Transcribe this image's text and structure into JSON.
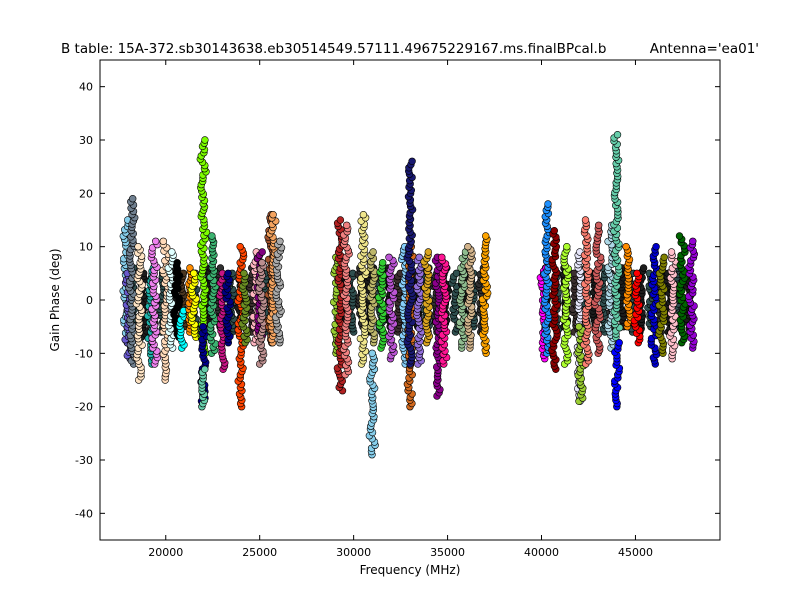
{
  "chart_data": {
    "type": "scatter",
    "title": "B table: 15A-372.sb30143638.eb30514549.57111.49675229167.ms.finalBPcal.b",
    "title_right": "Antenna='ea01'",
    "xlabel": "Frequency (MHz)",
    "ylabel": "Gain Phase (deg)",
    "xlim": [
      16500,
      49500
    ],
    "ylim": [
      -45,
      45
    ],
    "xticks": [
      20000,
      25000,
      30000,
      35000,
      40000,
      45000
    ],
    "yticks": [
      -40,
      -30,
      -20,
      -10,
      0,
      10,
      20,
      30,
      40
    ],
    "series_format": "[center_frequency_MHz, min_phase_deg, max_phase_deg, color]",
    "background_series": [
      [
        18300,
        -6,
        6,
        "#2f4f4f"
      ],
      [
        18800,
        -7,
        5,
        "#1c1c1c"
      ],
      [
        19300,
        -5,
        6,
        "#3b2f2f"
      ],
      [
        19800,
        -6,
        5,
        "#2f4f4f"
      ],
      [
        20400,
        -6,
        6,
        "#1c1c1c"
      ],
      [
        20900,
        -5,
        5,
        "#4b3621"
      ],
      [
        21600,
        -6,
        5,
        "#2f4f4f"
      ],
      [
        22300,
        -6,
        6,
        "#1c1c1c"
      ],
      [
        22800,
        -5,
        6,
        "#303030"
      ],
      [
        23500,
        -6,
        5,
        "#2f4f4f"
      ],
      [
        24000,
        -5,
        5,
        "#1c1c1c"
      ],
      [
        24600,
        -6,
        6,
        "#3b2f2f"
      ],
      [
        25300,
        -6,
        5,
        "#2f4f4f"
      ],
      [
        29400,
        -6,
        6,
        "#1c1c1c"
      ],
      [
        29900,
        -6,
        5,
        "#2f4f4f"
      ],
      [
        30400,
        -5,
        6,
        "#303030"
      ],
      [
        30900,
        -6,
        6,
        "#1c1c1c"
      ],
      [
        31400,
        -6,
        5,
        "#2f4f4f"
      ],
      [
        31900,
        -5,
        6,
        "#1c1c1c"
      ],
      [
        32400,
        -6,
        5,
        "#3b2f2f"
      ],
      [
        32900,
        -6,
        6,
        "#2f4f4f"
      ],
      [
        33400,
        -5,
        5,
        "#1c1c1c"
      ],
      [
        33900,
        -6,
        6,
        "#2f4f4f"
      ],
      [
        34400,
        -6,
        5,
        "#303030"
      ],
      [
        34900,
        -5,
        6,
        "#1c1c1c"
      ],
      [
        35400,
        -6,
        5,
        "#2f4f4f"
      ],
      [
        35900,
        -6,
        6,
        "#1c1c1c"
      ],
      [
        36400,
        -5,
        5,
        "#2f4f4f"
      ],
      [
        36800,
        -6,
        6,
        "#303030"
      ],
      [
        40200,
        -6,
        6,
        "#1c1c1c"
      ],
      [
        40800,
        -6,
        5,
        "#2f4f4f"
      ],
      [
        41300,
        -5,
        6,
        "#1c1c1c"
      ],
      [
        41800,
        -6,
        5,
        "#3b2f2f"
      ],
      [
        42300,
        -6,
        6,
        "#2f4f4f"
      ],
      [
        42800,
        -5,
        5,
        "#1c1c1c"
      ],
      [
        43300,
        -6,
        6,
        "#2f4f4f"
      ],
      [
        43800,
        -6,
        5,
        "#303030"
      ],
      [
        44300,
        -5,
        6,
        "#1c1c1c"
      ],
      [
        44800,
        -6,
        5,
        "#2f4f4f"
      ],
      [
        45300,
        -6,
        6,
        "#1c1c1c"
      ],
      [
        45800,
        -5,
        5,
        "#2f4f4f"
      ],
      [
        46300,
        -6,
        6,
        "#303030"
      ],
      [
        46800,
        -6,
        5,
        "#1c1c1c"
      ],
      [
        47300,
        -5,
        6,
        "#2f4f4f"
      ],
      [
        47800,
        -6,
        5,
        "#1c1c1c"
      ]
    ],
    "series": [
      [
        17900,
        -8,
        15,
        "#87ceeb"
      ],
      [
        18000,
        -11,
        5,
        "#6a5acd"
      ],
      [
        18200,
        -12,
        19,
        "#708090"
      ],
      [
        18600,
        -15,
        10,
        "#ffe4c4"
      ],
      [
        19200,
        -12,
        6,
        "#20b2aa"
      ],
      [
        19400,
        -12,
        11,
        "#ee82ee"
      ],
      [
        20000,
        -15,
        11,
        "#ffdab9"
      ],
      [
        20300,
        -9,
        9,
        "#e0ffff"
      ],
      [
        20600,
        -7,
        7,
        "#000000"
      ],
      [
        20850,
        -9,
        -2,
        "#00ffff"
      ],
      [
        21300,
        -6,
        6,
        "#ff8c00"
      ],
      [
        21500,
        -7,
        5,
        "#ffff00"
      ],
      [
        22000,
        -10,
        30,
        "#7cfc00"
      ],
      [
        22000,
        -19,
        -5,
        "#00008b"
      ],
      [
        22000,
        -20,
        -13,
        "#66cdaa"
      ],
      [
        22500,
        -10,
        12,
        "#3cb371"
      ],
      [
        23000,
        -13,
        5,
        "#c71585"
      ],
      [
        23300,
        -8,
        5,
        "#000080"
      ],
      [
        24000,
        -20,
        10,
        "#ff4500"
      ],
      [
        24200,
        -8,
        5,
        "#6b8e23"
      ],
      [
        24800,
        -8,
        9,
        "#ffb6c1"
      ],
      [
        25000,
        -8,
        9,
        "#800080"
      ],
      [
        25100,
        -12,
        7,
        "#bc8f8f"
      ],
      [
        25600,
        -8,
        16,
        "#a0522d"
      ],
      [
        25700,
        -8,
        16,
        "#f4a460"
      ],
      [
        26000,
        -8,
        11,
        "#a9a9a9"
      ],
      [
        29100,
        -10,
        8,
        "#9acd32"
      ],
      [
        29300,
        -17,
        15,
        "#b22222"
      ],
      [
        29600,
        -14,
        14,
        "#f08080"
      ],
      [
        30500,
        -12,
        16,
        "#f0e68c"
      ],
      [
        31000,
        -29,
        -10,
        "#87ceeb"
      ],
      [
        31000,
        -8,
        9,
        "#bdb76b"
      ],
      [
        31500,
        -9,
        7,
        "#32cd32"
      ],
      [
        32000,
        -11,
        8,
        "#ba55d3"
      ],
      [
        32700,
        -12,
        10,
        "#87cefa"
      ],
      [
        33000,
        -20,
        10,
        "#d2691e"
      ],
      [
        33000,
        -12,
        26,
        "#191970"
      ],
      [
        33500,
        -12,
        8,
        "#9370db"
      ],
      [
        33900,
        -8,
        9,
        "#daa520"
      ],
      [
        34500,
        -18,
        8,
        "#8b008b"
      ],
      [
        34800,
        -12,
        8,
        "#ff1493"
      ],
      [
        35800,
        -9,
        9,
        "#8fbc8f"
      ],
      [
        36200,
        -9,
        10,
        "#d2b48c"
      ],
      [
        37000,
        -10,
        12,
        "#ffa500"
      ],
      [
        40100,
        -11,
        6,
        "#ff00ff"
      ],
      [
        40300,
        -10,
        18,
        "#1e90ff"
      ],
      [
        40700,
        -13,
        13,
        "#8b0000"
      ],
      [
        41300,
        -12,
        10,
        "#adff2f"
      ],
      [
        42000,
        -19,
        9,
        "#e6e6fa"
      ],
      [
        42100,
        -19,
        -5,
        "#9acd32"
      ],
      [
        42400,
        -12,
        15,
        "#fa8072"
      ],
      [
        43000,
        -10,
        14,
        "#cd5c5c"
      ],
      [
        43700,
        -9,
        14,
        "#add8e6"
      ],
      [
        44000,
        -7,
        31,
        "#66cdaa"
      ],
      [
        44000,
        -20,
        -8,
        "#0000ff"
      ],
      [
        44600,
        -5,
        10,
        "#ff8c00"
      ],
      [
        45100,
        -8,
        5,
        "#ff0000"
      ],
      [
        46000,
        -12,
        10,
        "#0000cd"
      ],
      [
        46400,
        -10,
        8,
        "#808000"
      ],
      [
        47000,
        -11,
        9,
        "#ffc0cb"
      ],
      [
        47500,
        -8,
        12,
        "#006400"
      ],
      [
        48000,
        -9,
        11,
        "#9400d3"
      ]
    ]
  }
}
